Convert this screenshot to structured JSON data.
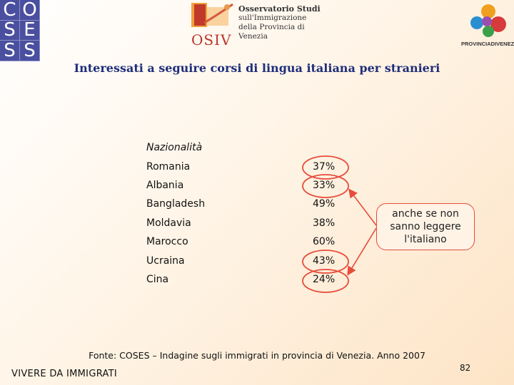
{
  "logos": {
    "coses_letters": [
      "C",
      "O",
      "S",
      "E",
      "S",
      "S"
    ],
    "osiv": {
      "acronym": "OSIV",
      "lines": [
        "Osservatorio Studi",
        "sull'Immigrazione",
        "della Provincia di Venezia"
      ]
    },
    "provincia": {
      "text": "PROVINCIADIVENEZIA"
    }
  },
  "title": "Interessati a seguire corsi di lingua italiana per stranieri",
  "table": {
    "header": "Nazionalità",
    "rows": [
      {
        "country": "Romania",
        "pct": "37%",
        "circled": true
      },
      {
        "country": "Albania",
        "pct": "33%",
        "circled": true
      },
      {
        "country": "Bangladesh",
        "pct": "49%",
        "circled": false
      },
      {
        "country": "Moldavia",
        "pct": "38%",
        "circled": false
      },
      {
        "country": "Marocco",
        "pct": "60%",
        "circled": false
      },
      {
        "country": "Ucraina",
        "pct": "43%",
        "circled": true
      },
      {
        "country": "Cina",
        "pct": "24%",
        "circled": true
      }
    ]
  },
  "note": {
    "lines": [
      "anche se non",
      "sanno leggere",
      "l'italiano"
    ],
    "border_color": "#e74c3c"
  },
  "source": "Fonte: COSES – Indagine sugli immigrati in provincia di Venezia. Anno 2007",
  "footer_label": "VIVERE DA IMMIGRATI",
  "page_number": "82",
  "colors": {
    "title": "#1f2e7a",
    "coses_bg": "#4a4fa0",
    "highlight": "#e74c3c"
  }
}
